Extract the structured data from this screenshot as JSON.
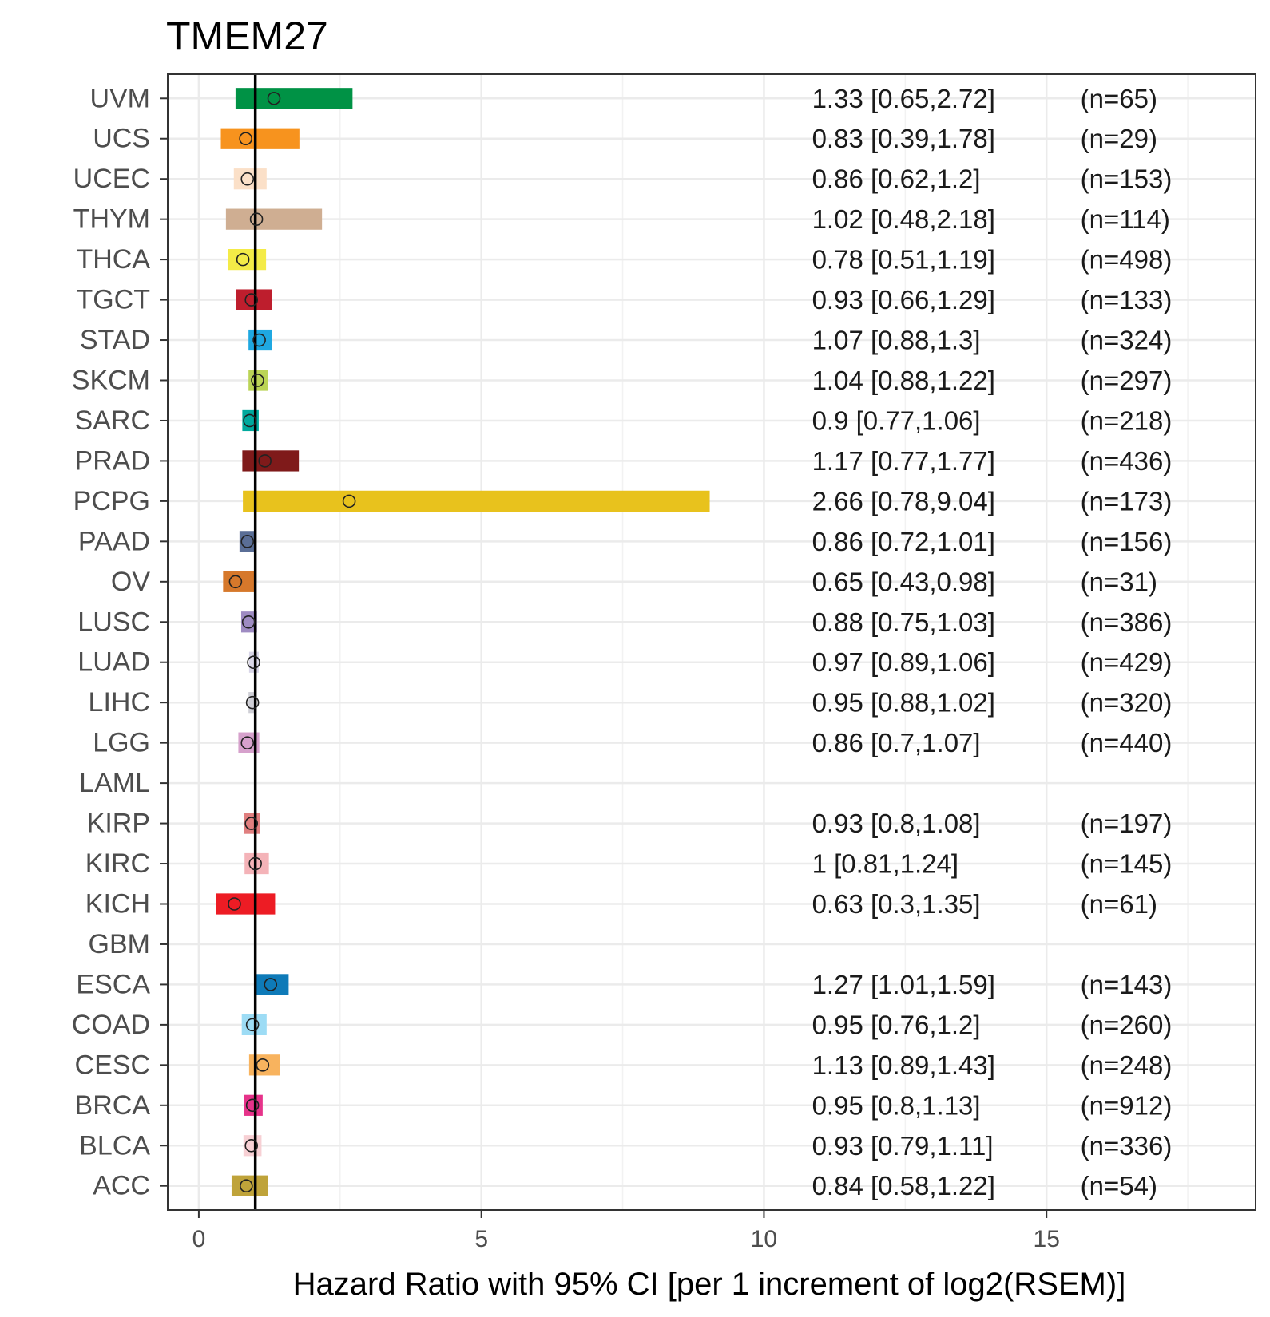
{
  "chart_data": {
    "type": "forest",
    "title": "TMEM27",
    "xlabel": "Hazard Ratio with 95% CI [per 1 increment of log2(RSEM)]",
    "ylabel": "",
    "xlim": [
      -0.55,
      18.7
    ],
    "xticks": [
      0,
      5,
      10,
      15
    ],
    "xtick_labels": [
      "0",
      "5",
      "10",
      "15"
    ],
    "reference_line": 1,
    "grid": true,
    "rows": [
      {
        "label": "UVM",
        "hr": 1.33,
        "lo": 0.65,
        "hi": 2.72,
        "ci_text": "1.33 [0.65,2.72]",
        "n_text": "(n=65)",
        "color": "#009245"
      },
      {
        "label": "UCS",
        "hr": 0.83,
        "lo": 0.39,
        "hi": 1.78,
        "ci_text": "0.83 [0.39,1.78]",
        "n_text": "(n=29)",
        "color": "#F7931E"
      },
      {
        "label": "UCEC",
        "hr": 0.86,
        "lo": 0.62,
        "hi": 1.2,
        "ci_text": "0.86 [0.62,1.2]",
        "n_text": "(n=153)",
        "color": "#FBE0C8"
      },
      {
        "label": "THYM",
        "hr": 1.02,
        "lo": 0.48,
        "hi": 2.18,
        "ci_text": "1.02 [0.48,2.18]",
        "n_text": "(n=114)",
        "color": "#CFAE92"
      },
      {
        "label": "THCA",
        "hr": 0.78,
        "lo": 0.51,
        "hi": 1.19,
        "ci_text": "0.78 [0.51,1.19]",
        "n_text": "(n=498)",
        "color": "#F4EB47"
      },
      {
        "label": "TGCT",
        "hr": 0.93,
        "lo": 0.66,
        "hi": 1.29,
        "ci_text": "0.93 [0.66,1.29]",
        "n_text": "(n=133)",
        "color": "#BE1E2D"
      },
      {
        "label": "STAD",
        "hr": 1.07,
        "lo": 0.88,
        "hi": 1.3,
        "ci_text": "1.07 [0.88,1.3]",
        "n_text": "(n=324)",
        "color": "#1FA8E1"
      },
      {
        "label": "SKCM",
        "hr": 1.04,
        "lo": 0.88,
        "hi": 1.22,
        "ci_text": "1.04 [0.88,1.22]",
        "n_text": "(n=297)",
        "color": "#BBD456"
      },
      {
        "label": "SARC",
        "hr": 0.9,
        "lo": 0.77,
        "hi": 1.06,
        "ci_text": "0.9 [0.77,1.06]",
        "n_text": "(n=218)",
        "color": "#00A99D"
      },
      {
        "label": "PRAD",
        "hr": 1.17,
        "lo": 0.77,
        "hi": 1.77,
        "ci_text": "1.17 [0.77,1.77]",
        "n_text": "(n=436)",
        "color": "#7F1A1A"
      },
      {
        "label": "PCPG",
        "hr": 2.66,
        "lo": 0.78,
        "hi": 9.04,
        "ci_text": "2.66 [0.78,9.04]",
        "n_text": "(n=173)",
        "color": "#E8C21D"
      },
      {
        "label": "PAAD",
        "hr": 0.86,
        "lo": 0.72,
        "hi": 1.01,
        "ci_text": "0.86 [0.72,1.01]",
        "n_text": "(n=156)",
        "color": "#5A6E96"
      },
      {
        "label": "OV",
        "hr": 0.65,
        "lo": 0.43,
        "hi": 0.98,
        "ci_text": "0.65 [0.43,0.98]",
        "n_text": "(n=31)",
        "color": "#D6782B"
      },
      {
        "label": "LUSC",
        "hr": 0.88,
        "lo": 0.75,
        "hi": 1.03,
        "ci_text": "0.88 [0.75,1.03]",
        "n_text": "(n=386)",
        "color": "#9E8BC2"
      },
      {
        "label": "LUAD",
        "hr": 0.97,
        "lo": 0.89,
        "hi": 1.06,
        "ci_text": "0.97 [0.89,1.06]",
        "n_text": "(n=429)",
        "color": "#D9D6E8"
      },
      {
        "label": "LIHC",
        "hr": 0.95,
        "lo": 0.88,
        "hi": 1.02,
        "ci_text": "0.95 [0.88,1.02]",
        "n_text": "(n=320)",
        "color": "#CFCFD6"
      },
      {
        "label": "LGG",
        "hr": 0.86,
        "lo": 0.7,
        "hi": 1.07,
        "ci_text": "0.86 [0.7,1.07]",
        "n_text": "(n=440)",
        "color": "#D6A1CC"
      },
      {
        "label": "LAML",
        "hr": null,
        "lo": null,
        "hi": null,
        "ci_text": "",
        "n_text": "",
        "color": ""
      },
      {
        "label": "KIRP",
        "hr": 0.93,
        "lo": 0.8,
        "hi": 1.08,
        "ci_text": "0.93 [0.8,1.08]",
        "n_text": "(n=197)",
        "color": "#E07F7F"
      },
      {
        "label": "KIRC",
        "hr": 1,
        "lo": 0.81,
        "hi": 1.24,
        "ci_text": "1 [0.81,1.24]",
        "n_text": "(n=145)",
        "color": "#F4B3B8"
      },
      {
        "label": "KICH",
        "hr": 0.63,
        "lo": 0.3,
        "hi": 1.35,
        "ci_text": "0.63 [0.3,1.35]",
        "n_text": "(n=61)",
        "color": "#ED1C24"
      },
      {
        "label": "GBM",
        "hr": null,
        "lo": null,
        "hi": null,
        "ci_text": "",
        "n_text": "",
        "color": ""
      },
      {
        "label": "ESCA",
        "hr": 1.27,
        "lo": 1.01,
        "hi": 1.59,
        "ci_text": "1.27 [1.01,1.59]",
        "n_text": "(n=143)",
        "color": "#0E7AB8"
      },
      {
        "label": "COAD",
        "hr": 0.95,
        "lo": 0.76,
        "hi": 1.2,
        "ci_text": "0.95 [0.76,1.2]",
        "n_text": "(n=260)",
        "color": "#9DDCF5"
      },
      {
        "label": "CESC",
        "hr": 1.13,
        "lo": 0.89,
        "hi": 1.43,
        "ci_text": "1.13 [0.89,1.43]",
        "n_text": "(n=248)",
        "color": "#F8B35E"
      },
      {
        "label": "BRCA",
        "hr": 0.95,
        "lo": 0.8,
        "hi": 1.13,
        "ci_text": "0.95 [0.8,1.13]",
        "n_text": "(n=912)",
        "color": "#E6338A"
      },
      {
        "label": "BLCA",
        "hr": 0.93,
        "lo": 0.79,
        "hi": 1.11,
        "ci_text": "0.93 [0.79,1.11]",
        "n_text": "(n=336)",
        "color": "#F7D0D4"
      },
      {
        "label": "ACC",
        "hr": 0.84,
        "lo": 0.58,
        "hi": 1.22,
        "ci_text": "0.84 [0.58,1.22]",
        "n_text": "(n=54)",
        "color": "#BFA33A"
      }
    ]
  }
}
